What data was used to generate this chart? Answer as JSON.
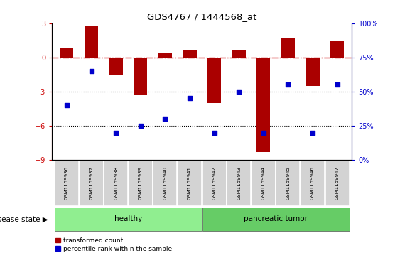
{
  "title": "GDS4767 / 1444568_at",
  "samples": [
    "GSM1159936",
    "GSM1159937",
    "GSM1159938",
    "GSM1159939",
    "GSM1159940",
    "GSM1159941",
    "GSM1159942",
    "GSM1159943",
    "GSM1159944",
    "GSM1159945",
    "GSM1159946",
    "GSM1159947"
  ],
  "bar_values": [
    0.8,
    2.8,
    -1.5,
    -3.3,
    0.4,
    0.6,
    -4.0,
    0.7,
    -8.3,
    1.7,
    -2.5,
    1.4
  ],
  "blue_pct": [
    40,
    65,
    20,
    25,
    30,
    45,
    20,
    50,
    20,
    55,
    20,
    55
  ],
  "bar_color": "#AA0000",
  "blue_color": "#0000CC",
  "ref_line_color": "#CC0000",
  "dotted_line_color": "#000000",
  "ylim_left": [
    -9,
    3
  ],
  "ylim_right": [
    0,
    100
  ],
  "yticks_left": [
    -9,
    -6,
    -3,
    0,
    3
  ],
  "yticks_right": [
    0,
    25,
    50,
    75,
    100
  ],
  "y2_labels": [
    "0%",
    "25%",
    "50%",
    "75%",
    "100%"
  ],
  "healthy_color": "#90EE90",
  "tumor_color": "#66CC66",
  "healthy_label": "healthy",
  "tumor_label": "pancreatic tumor",
  "healthy_count": 6,
  "tumor_count": 6,
  "label_transformed": "transformed count",
  "label_percentile": "percentile rank within the sample",
  "disease_state_label": "disease state",
  "bar_width": 0.55,
  "bg_color": "#ffffff"
}
